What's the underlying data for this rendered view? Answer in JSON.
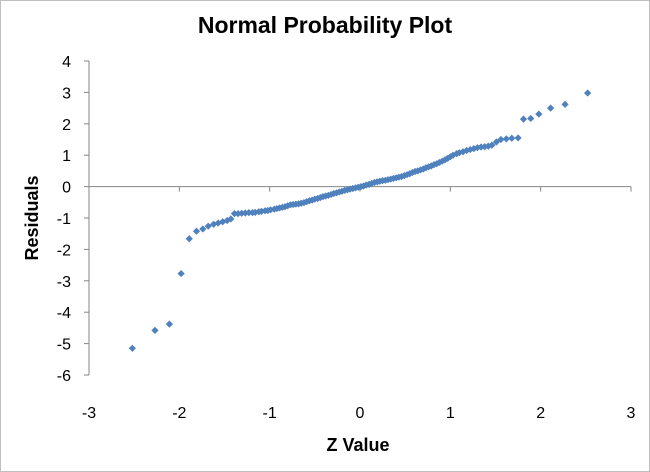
{
  "chart_data": {
    "type": "scatter",
    "title": "Normal Probability Plot",
    "xlabel": "Z Value",
    "ylabel": "Residuals",
    "xlim": [
      -3,
      3
    ],
    "ylim": [
      -6,
      4
    ],
    "x_ticks": [
      "-3",
      "-2",
      "-1",
      "0",
      "1",
      "2",
      "3"
    ],
    "y_ticks": [
      "4",
      "3",
      "2",
      "1",
      "0",
      "-1",
      "-2",
      "-3",
      "-4",
      "-5",
      "-6"
    ],
    "gridlines": false,
    "marker": "diamond",
    "marker_color": "#4f81bd",
    "series": [
      {
        "name": "Residuals",
        "points": [
          [
            -2.52,
            -5.15
          ],
          [
            -2.27,
            -4.58
          ],
          [
            -2.11,
            -4.38
          ],
          [
            -1.98,
            -2.77
          ],
          [
            -1.89,
            -1.66
          ],
          [
            -1.81,
            -1.42
          ],
          [
            -1.74,
            -1.35
          ],
          [
            -1.68,
            -1.26
          ],
          [
            -1.62,
            -1.2
          ],
          [
            -1.57,
            -1.16
          ],
          [
            -1.52,
            -1.12
          ],
          [
            -1.47,
            -1.08
          ],
          [
            -1.43,
            -1.03
          ],
          [
            -1.39,
            -0.86
          ],
          [
            -1.35,
            -0.86
          ],
          [
            -1.31,
            -0.85
          ],
          [
            -1.27,
            -0.84
          ],
          [
            -1.23,
            -0.83
          ],
          [
            -1.19,
            -0.83
          ],
          [
            -1.16,
            -0.82
          ],
          [
            -1.12,
            -0.8
          ],
          [
            -1.09,
            -0.79
          ],
          [
            -1.05,
            -0.77
          ],
          [
            -1.02,
            -0.76
          ],
          [
            -0.99,
            -0.74
          ],
          [
            -0.95,
            -0.72
          ],
          [
            -0.92,
            -0.7
          ],
          [
            -0.89,
            -0.68
          ],
          [
            -0.86,
            -0.66
          ],
          [
            -0.83,
            -0.64
          ],
          [
            -0.8,
            -0.61
          ],
          [
            -0.77,
            -0.58
          ],
          [
            -0.74,
            -0.57
          ],
          [
            -0.71,
            -0.56
          ],
          [
            -0.68,
            -0.55
          ],
          [
            -0.65,
            -0.53
          ],
          [
            -0.62,
            -0.51
          ],
          [
            -0.59,
            -0.48
          ],
          [
            -0.56,
            -0.45
          ],
          [
            -0.53,
            -0.43
          ],
          [
            -0.5,
            -0.4
          ],
          [
            -0.47,
            -0.38
          ],
          [
            -0.44,
            -0.35
          ],
          [
            -0.41,
            -0.32
          ],
          [
            -0.38,
            -0.3
          ],
          [
            -0.35,
            -0.28
          ],
          [
            -0.32,
            -0.25
          ],
          [
            -0.29,
            -0.22
          ],
          [
            -0.26,
            -0.2
          ],
          [
            -0.23,
            -0.17
          ],
          [
            -0.2,
            -0.15
          ],
          [
            -0.17,
            -0.12
          ],
          [
            -0.14,
            -0.1
          ],
          [
            -0.11,
            -0.08
          ],
          [
            -0.08,
            -0.06
          ],
          [
            -0.05,
            -0.04
          ],
          [
            -0.02,
            -0.02
          ],
          [
            0.01,
            0.0
          ],
          [
            0.04,
            0.02
          ],
          [
            0.07,
            0.05
          ],
          [
            0.1,
            0.07
          ],
          [
            0.13,
            0.1
          ],
          [
            0.16,
            0.13
          ],
          [
            0.19,
            0.15
          ],
          [
            0.22,
            0.17
          ],
          [
            0.25,
            0.19
          ],
          [
            0.28,
            0.2
          ],
          [
            0.31,
            0.22
          ],
          [
            0.34,
            0.24
          ],
          [
            0.37,
            0.26
          ],
          [
            0.4,
            0.28
          ],
          [
            0.43,
            0.3
          ],
          [
            0.46,
            0.32
          ],
          [
            0.49,
            0.35
          ],
          [
            0.52,
            0.38
          ],
          [
            0.55,
            0.41
          ],
          [
            0.58,
            0.45
          ],
          [
            0.61,
            0.48
          ],
          [
            0.64,
            0.5
          ],
          [
            0.67,
            0.53
          ],
          [
            0.7,
            0.56
          ],
          [
            0.73,
            0.6
          ],
          [
            0.76,
            0.63
          ],
          [
            0.79,
            0.66
          ],
          [
            0.82,
            0.7
          ],
          [
            0.85,
            0.73
          ],
          [
            0.88,
            0.77
          ],
          [
            0.91,
            0.81
          ],
          [
            0.94,
            0.85
          ],
          [
            0.97,
            0.9
          ],
          [
            1.0,
            0.95
          ],
          [
            1.03,
            1.0
          ],
          [
            1.07,
            1.05
          ],
          [
            1.1,
            1.08
          ],
          [
            1.14,
            1.11
          ],
          [
            1.18,
            1.15
          ],
          [
            1.22,
            1.18
          ],
          [
            1.26,
            1.21
          ],
          [
            1.3,
            1.24
          ],
          [
            1.34,
            1.26
          ],
          [
            1.38,
            1.27
          ],
          [
            1.42,
            1.29
          ],
          [
            1.46,
            1.32
          ],
          [
            1.51,
            1.42
          ],
          [
            1.56,
            1.5
          ],
          [
            1.62,
            1.52
          ],
          [
            1.68,
            1.54
          ],
          [
            1.75,
            1.55
          ],
          [
            1.81,
            2.15
          ],
          [
            1.89,
            2.17
          ],
          [
            1.98,
            2.31
          ],
          [
            2.11,
            2.5
          ],
          [
            2.27,
            2.62
          ],
          [
            2.52,
            2.98
          ]
        ]
      }
    ]
  }
}
